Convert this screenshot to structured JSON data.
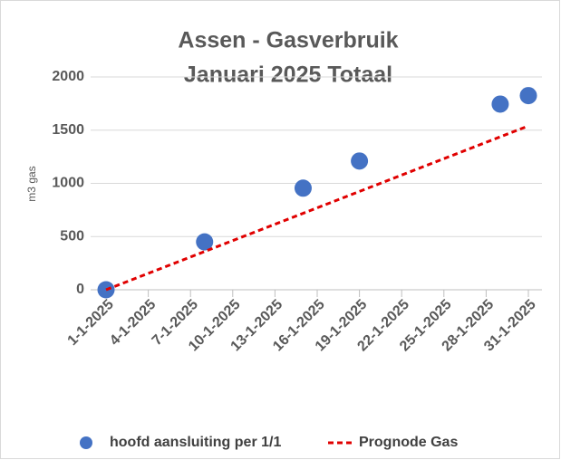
{
  "chart_data": {
    "type": "scatter",
    "title": [
      "Assen - Gasverbruik",
      "Januari 2025 Totaal"
    ],
    "y_label": "m3 gas",
    "series": [
      {
        "name": "hoofd aansluiting per 1/1",
        "type": "scatter",
        "color": "#4472c4",
        "x": [
          "1-1-2025",
          "8-1-2025",
          "15-1-2025",
          "19-1-2025",
          "29-1-2025",
          "31-1-2025"
        ],
        "values": [
          0,
          450,
          955,
          1210,
          1745,
          1825
        ]
      },
      {
        "name": "Prognode Gas",
        "type": "line",
        "color": "#e00000",
        "dashed": true,
        "x": [
          "1-1-2025",
          "31-1-2025"
        ],
        "values": [
          0,
          1540
        ]
      }
    ],
    "xlim": [
      "1-1-2025",
      "31-1-2025"
    ],
    "xticks": [
      "1-1-2025",
      "4-1-2025",
      "7-1-2025",
      "10-1-2025",
      "13-1-2025",
      "16-1-2025",
      "19-1-2025",
      "22-1-2025",
      "25-1-2025",
      "28-1-2025",
      "31-1-2025"
    ],
    "ylim": [
      0,
      2000
    ],
    "yticks": [
      0,
      500,
      1000,
      1500,
      2000
    ],
    "grid": true,
    "legend": "bottom"
  }
}
